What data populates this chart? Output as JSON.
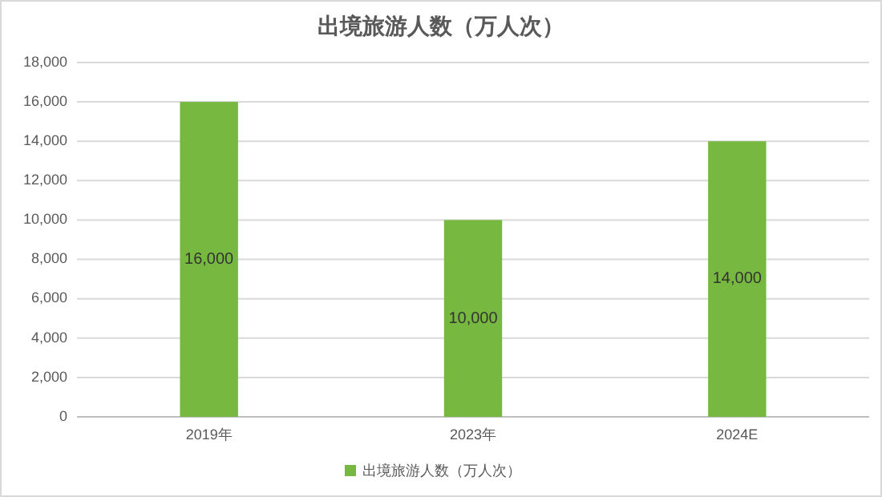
{
  "chart_data": {
    "type": "bar",
    "title": "出境旅游人数（万人次）",
    "categories": [
      "2019年",
      "2023年",
      "2024E"
    ],
    "series": [
      {
        "name": "出境旅游人数（万人次）",
        "color": "#77b940",
        "values": [
          16000,
          10000,
          14000
        ]
      }
    ],
    "value_labels": [
      "16,000",
      "10,000",
      "14,000"
    ],
    "ylim": [
      0,
      18000
    ],
    "yticks": [
      {
        "value": 0,
        "label": "0"
      },
      {
        "value": 2000,
        "label": "2,000"
      },
      {
        "value": 4000,
        "label": "4,000"
      },
      {
        "value": 6000,
        "label": "6,000"
      },
      {
        "value": 8000,
        "label": "8,000"
      },
      {
        "value": 10000,
        "label": "10,000"
      },
      {
        "value": 12000,
        "label": "12,000"
      },
      {
        "value": 14000,
        "label": "14,000"
      },
      {
        "value": 16000,
        "label": "16,000"
      },
      {
        "value": 18000,
        "label": "18,000"
      }
    ],
    "grid": "y",
    "legend": "bottom"
  }
}
